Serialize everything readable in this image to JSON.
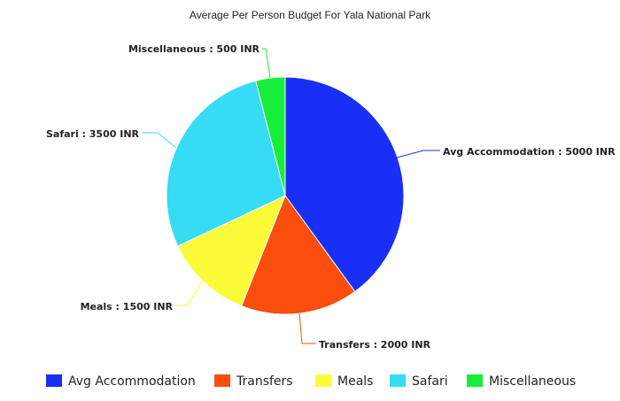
{
  "chart_data": {
    "type": "pie",
    "title": "Average Per Person Budget For Yala National Park",
    "unit": "INR",
    "slices": [
      {
        "name": "Avg Accommodation",
        "value": 5000,
        "label": "Avg Accommodation : 5000 INR",
        "color": "#1a2ff5"
      },
      {
        "name": "Transfers",
        "value": 2000,
        "label": "Transfers : 2000 INR",
        "color": "#fb4d0b"
      },
      {
        "name": "Meals",
        "value": 1500,
        "label": "Meals : 1500 INR",
        "color": "#fbfb3a"
      },
      {
        "name": "Safari",
        "value": 3500,
        "label": "Safari : 3500 INR",
        "color": "#36dcf4"
      },
      {
        "name": "Miscellaneous",
        "value": 500,
        "label": "Miscellaneous : 500 INR",
        "color": "#17ee3a"
      }
    ],
    "legend_position": "bottom"
  }
}
